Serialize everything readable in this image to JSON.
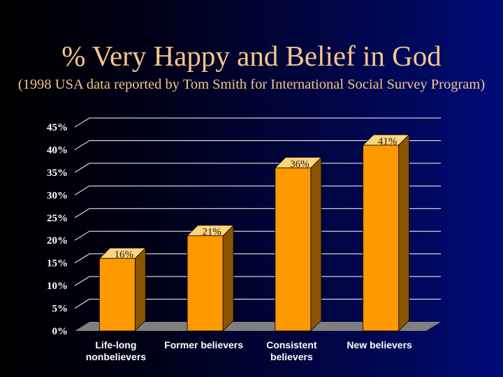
{
  "slide": {
    "title": "% Very Happy and Belief in God",
    "subtitle": "(1998 USA data reported by Tom Smith for International Social Survey Program)"
  },
  "colors": {
    "bar_front": "#ff9900",
    "bar_side": "#8a5400",
    "bar_top": "#ffd37a",
    "floor": "#7f7f7f",
    "gridline": "#ffffff",
    "text": "#ffffff",
    "title_text": "#f7c68a"
  },
  "chart_data": {
    "type": "bar",
    "categories": [
      [
        "Life-long",
        "nonbelievers"
      ],
      [
        "Former believers"
      ],
      [
        "Consistent",
        "believers"
      ],
      [
        "New believers"
      ]
    ],
    "values": [
      16,
      21,
      36,
      41
    ],
    "data_labels": [
      "16%",
      "21%",
      "36%",
      "41%"
    ],
    "y_ticks": [
      0,
      5,
      10,
      15,
      20,
      25,
      30,
      35,
      40,
      45
    ],
    "y_tick_labels": [
      "0%",
      "5%",
      "10%",
      "15%",
      "20%",
      "25%",
      "30%",
      "35%",
      "40%",
      "45%"
    ],
    "ylim": [
      0,
      45
    ],
    "grid": true,
    "legend": "none"
  }
}
